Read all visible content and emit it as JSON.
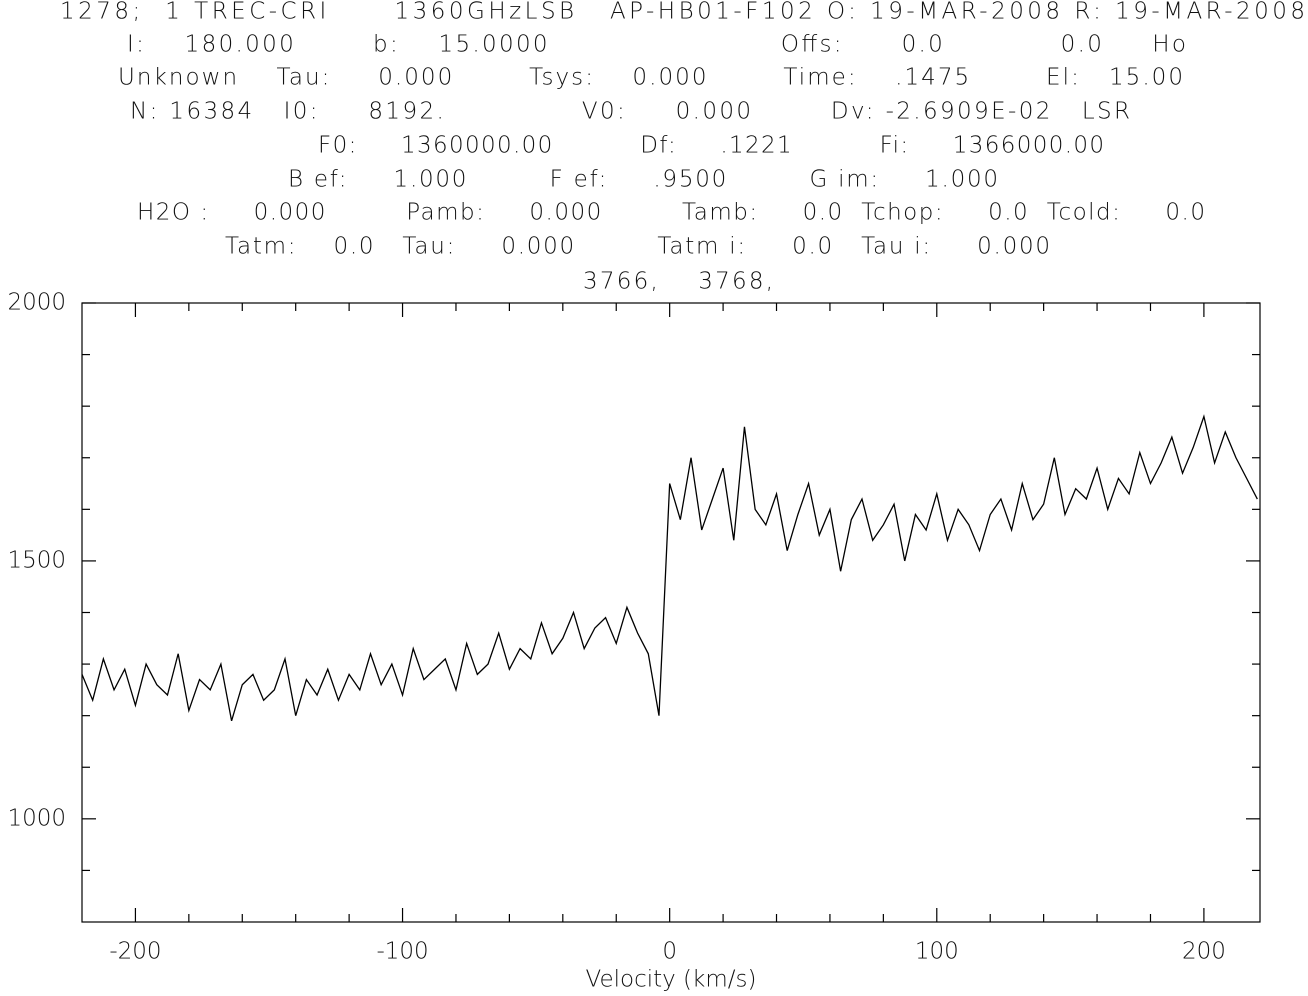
{
  "chart_data": {
    "type": "line",
    "header_lines": [
      "1278;  1 TREC-CRI      1360GHzLSB   AP-HB01-F102 O: 19-MAR-2008 R: 19-MAR-2008",
      "I:    180.000        b:    15.0000                        Offs:      0.0            0.0     Ho",
      "Unknown    Tau:     0.000        Tsys:    0.000        Time:    .1475        El:   15.00",
      "N: 16384   I0:     8192.              V0:     0.000        Dv: -2.6909E-02   LSR",
      "F0:     1360000.00          Df:     .1221          Fi:     1366000.00",
      "B ef:     1.000         F ef:     .9500         G im:     1.000",
      "H2O :     0.000         Pamb:     0.000         Tamb:     0.0  Tchop:     0.0  Tcold:     0.0",
      "Tatm:    0.0   Tau:     0.000         Tatm i:     0.0   Tau i:     0.000",
      "3766,    3768,"
    ],
    "x_label": "Velocity (km/s)",
    "x": [
      -220,
      -216,
      -212,
      -208,
      -204,
      -200,
      -196,
      -192,
      -188,
      -184,
      -180,
      -176,
      -172,
      -168,
      -164,
      -160,
      -156,
      -152,
      -148,
      -144,
      -140,
      -136,
      -132,
      -128,
      -124,
      -120,
      -116,
      -112,
      -108,
      -104,
      -100,
      -96,
      -92,
      -88,
      -84,
      -80,
      -76,
      -72,
      -68,
      -64,
      -60,
      -56,
      -52,
      -48,
      -44,
      -40,
      -36,
      -32,
      -28,
      -24,
      -20,
      -16,
      -12,
      -8,
      -4,
      0,
      4,
      8,
      12,
      16,
      20,
      24,
      28,
      32,
      36,
      40,
      44,
      48,
      52,
      56,
      60,
      64,
      68,
      72,
      76,
      80,
      84,
      88,
      92,
      96,
      100,
      104,
      108,
      112,
      116,
      120,
      124,
      128,
      132,
      136,
      140,
      144,
      148,
      152,
      156,
      160,
      164,
      168,
      172,
      176,
      180,
      184,
      188,
      192,
      196,
      200,
      204,
      208,
      212,
      216,
      220
    ],
    "values": [
      1280,
      1230,
      1310,
      1250,
      1290,
      1220,
      1300,
      1260,
      1240,
      1320,
      1210,
      1270,
      1250,
      1300,
      1190,
      1260,
      1280,
      1230,
      1250,
      1310,
      1200,
      1270,
      1240,
      1290,
      1230,
      1280,
      1250,
      1320,
      1260,
      1300,
      1240,
      1330,
      1270,
      1290,
      1310,
      1250,
      1340,
      1280,
      1300,
      1360,
      1290,
      1330,
      1310,
      1380,
      1320,
      1350,
      1400,
      1330,
      1370,
      1390,
      1340,
      1410,
      1360,
      1320,
      1200,
      1650,
      1580,
      1700,
      1560,
      1620,
      1680,
      1540,
      1760,
      1600,
      1570,
      1630,
      1520,
      1590,
      1650,
      1550,
      1600,
      1480,
      1580,
      1620,
      1540,
      1570,
      1610,
      1500,
      1590,
      1560,
      1630,
      1540,
      1600,
      1570,
      1520,
      1590,
      1620,
      1560,
      1650,
      1580,
      1610,
      1700,
      1590,
      1640,
      1620,
      1680,
      1600,
      1660,
      1630,
      1710,
      1650,
      1690,
      1740,
      1670,
      1720,
      1780,
      1690,
      1750,
      1700,
      1660,
      1620
    ],
    "color": "#000000",
    "xlim": [
      -220,
      221
    ],
    "ylim": [
      800,
      2000
    ],
    "xticks": [
      -200,
      -100,
      0,
      100,
      200
    ],
    "xminorticks": [
      -180,
      -160,
      -140,
      -120,
      -80,
      -60,
      -40,
      -20,
      20,
      40,
      60,
      80,
      120,
      140,
      160,
      180
    ],
    "yticks": [
      1000,
      1500,
      2000
    ],
    "yminorticks": [
      900,
      1100,
      1200,
      1300,
      1400,
      1600,
      1700,
      1800,
      1900
    ]
  }
}
